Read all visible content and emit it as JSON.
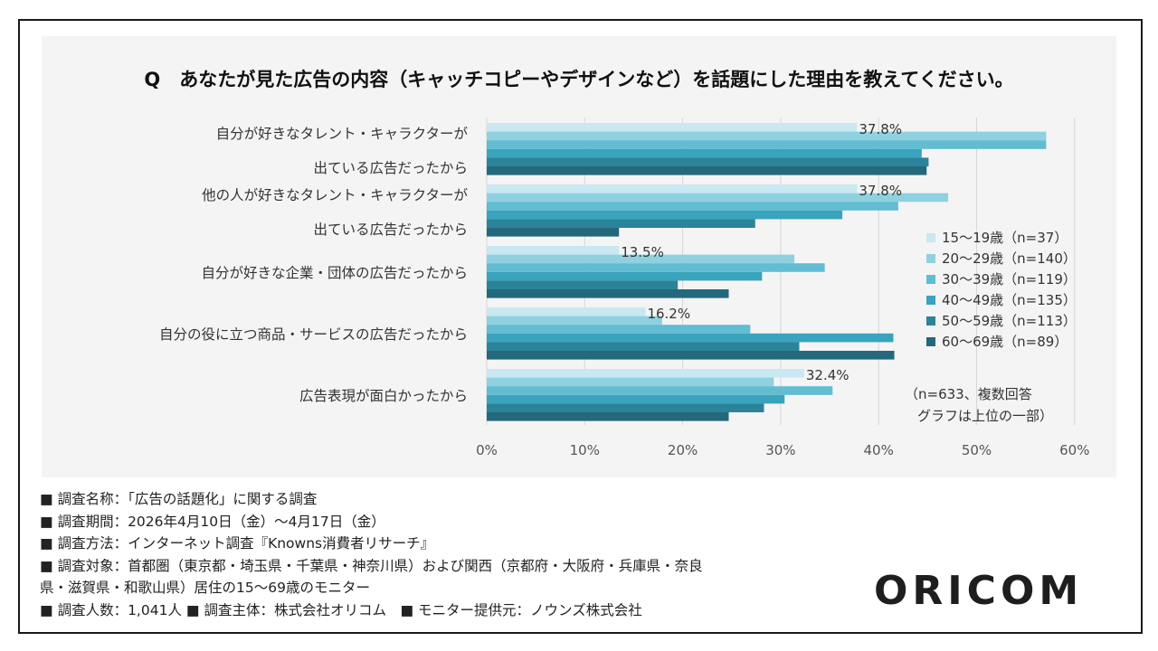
{
  "chart_data": {
    "type": "bar",
    "orientation": "horizontal",
    "title": "Q　あなたが見た広告の内容（キャッチコピーやデザインなど）を話題にした理由を教えてください。",
    "categories": [
      [
        "自分が好きなタレント・キャラクターが",
        "出ている広告だったから"
      ],
      [
        "他の人が好きなタレント・キャラクターが",
        "出ている広告だったから"
      ],
      [
        "自分が好きな企業・団体の広告だったから"
      ],
      [
        "自分の役に立つ商品・サービスの広告だったから"
      ],
      [
        "広告表現が面白かったから"
      ]
    ],
    "series": [
      {
        "name": "15～19歳（n=37）",
        "color": "#c9e8f1",
        "values": [
          37.8,
          37.8,
          13.5,
          16.2,
          32.4
        ]
      },
      {
        "name": "20～29歳（n=140）",
        "color": "#8fd1e0",
        "values": [
          57.1,
          47.1,
          31.4,
          17.9,
          29.3
        ]
      },
      {
        "name": "30～39歳（n=119）",
        "color": "#62bcd2",
        "values": [
          57.1,
          42.0,
          34.5,
          26.9,
          35.3
        ]
      },
      {
        "name": "40～49歳（n=135）",
        "color": "#3aa3bd",
        "values": [
          44.4,
          36.3,
          28.1,
          41.5,
          30.4
        ]
      },
      {
        "name": "50～59歳（n=113）",
        "color": "#2b8399",
        "values": [
          45.1,
          27.4,
          19.5,
          31.9,
          28.3
        ]
      },
      {
        "name": "60～69歳（n=89）",
        "color": "#24687c",
        "values": [
          44.9,
          13.5,
          24.7,
          41.6,
          24.7
        ]
      }
    ],
    "data_labels": [
      "37.8%",
      "37.8%",
      "13.5%",
      "16.2%",
      "32.4%"
    ],
    "xlim": [
      0,
      60
    ],
    "xticks": [
      "0%",
      "10%",
      "20%",
      "30%",
      "40%",
      "50%",
      "60%"
    ],
    "grid": true,
    "legend": "right"
  },
  "note": [
    "（n=633、複数回答",
    "グラフは上位の一部）"
  ],
  "footer": [
    "■ 調査名称：「広告の話題化」に関する調査",
    "■ 調査期間：2026年4月10日（金）～4月17日（金）",
    "■ 調査方法：インターネット調査『Knowns消費者リサーチ』",
    "■ 調査対象：首都圏（東京都・埼玉県・千葉県・神奈川県）および関西（京都府・大阪府・兵庫県・奈良",
    "県・滋賀県・和歌山県）居住の15～69歳のモニター",
    "■ 調査人数：1,041人 ■ 調査主体：株式会社オリコム　■ モニター提供元：ノウンズ株式会社"
  ],
  "logo": "ORICOM"
}
